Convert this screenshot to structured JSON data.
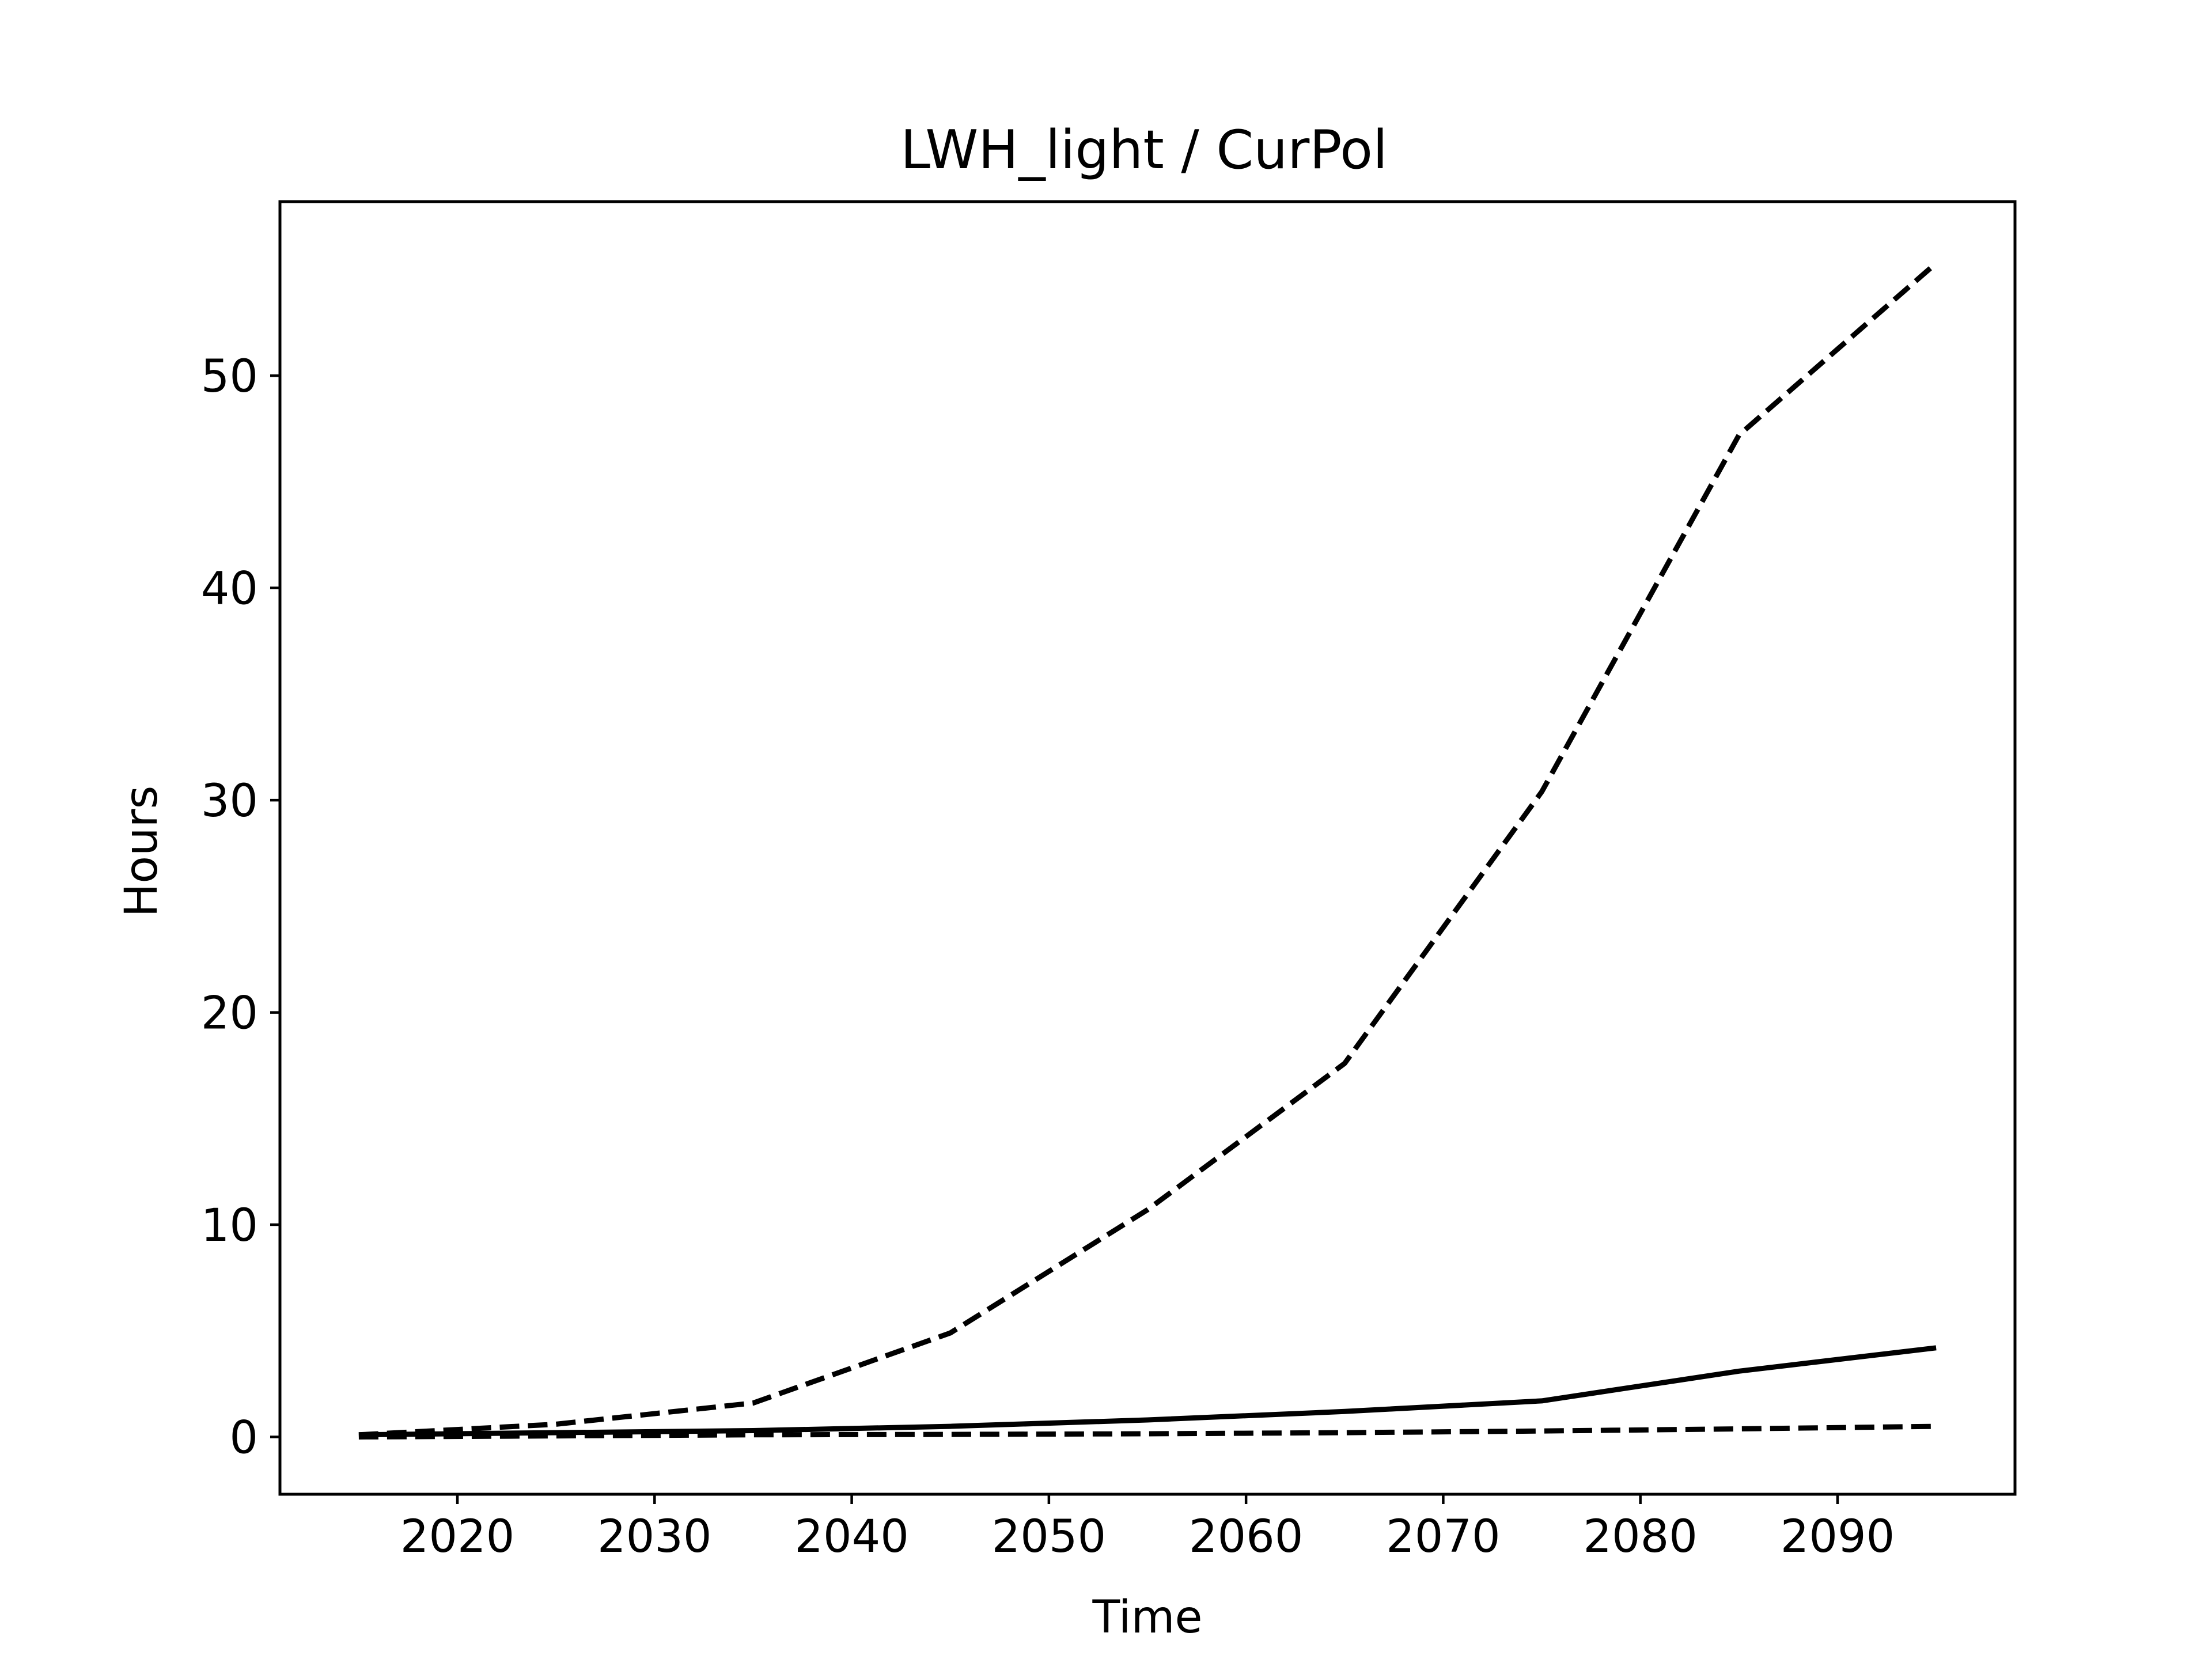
{
  "chart_data": {
    "type": "line",
    "title": "LWH_light / CurPol",
    "xlabel": "Time",
    "ylabel": "Hours",
    "xlim": [
      2011,
      2099
    ],
    "ylim": [
      -2.7,
      58.2
    ],
    "xticks": [
      2020,
      2030,
      2040,
      2050,
      2060,
      2070,
      2080,
      2090
    ],
    "yticks": [
      0,
      10,
      20,
      30,
      40,
      50
    ],
    "grid": false,
    "x": [
      2015,
      2025,
      2035,
      2045,
      2055,
      2065,
      2075,
      2085,
      2095
    ],
    "series": [
      {
        "style": "solid",
        "color": "#000000",
        "values": [
          0.1,
          0.2,
          0.3,
          0.5,
          0.8,
          1.2,
          1.7,
          3.1,
          4.2
        ]
      },
      {
        "style": "dashed",
        "color": "#000000",
        "values": [
          0.1,
          0.6,
          1.6,
          4.9,
          10.7,
          17.6,
          30.4,
          47.2,
          55.3
        ]
      },
      {
        "style": "dashed",
        "color": "#000000",
        "values": [
          0.0,
          0.05,
          0.1,
          0.12,
          0.15,
          0.2,
          0.28,
          0.38,
          0.5
        ]
      }
    ]
  }
}
